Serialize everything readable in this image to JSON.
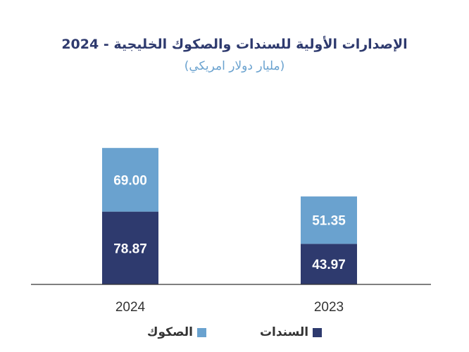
{
  "chart_data": {
    "type": "bar",
    "stacked": true,
    "title": "الإصدارات الأولية للسندات والصكوك الخليجية - 2024",
    "subtitle": "(مليار دولار امريكي)",
    "categories": [
      "2024",
      "2023"
    ],
    "series": [
      {
        "name": "السندات",
        "values": [
          78.87,
          43.97
        ],
        "labels": [
          "78.87",
          "43.97"
        ],
        "color": "#2e3a6e"
      },
      {
        "name": "الصكوك",
        "values": [
          69.0,
          51.35
        ],
        "labels": [
          "69.00",
          "51.35"
        ],
        "color": "#6aa2cf"
      }
    ],
    "ylim": [
      0,
      148
    ],
    "grid": false,
    "legend_position": "bottom"
  }
}
